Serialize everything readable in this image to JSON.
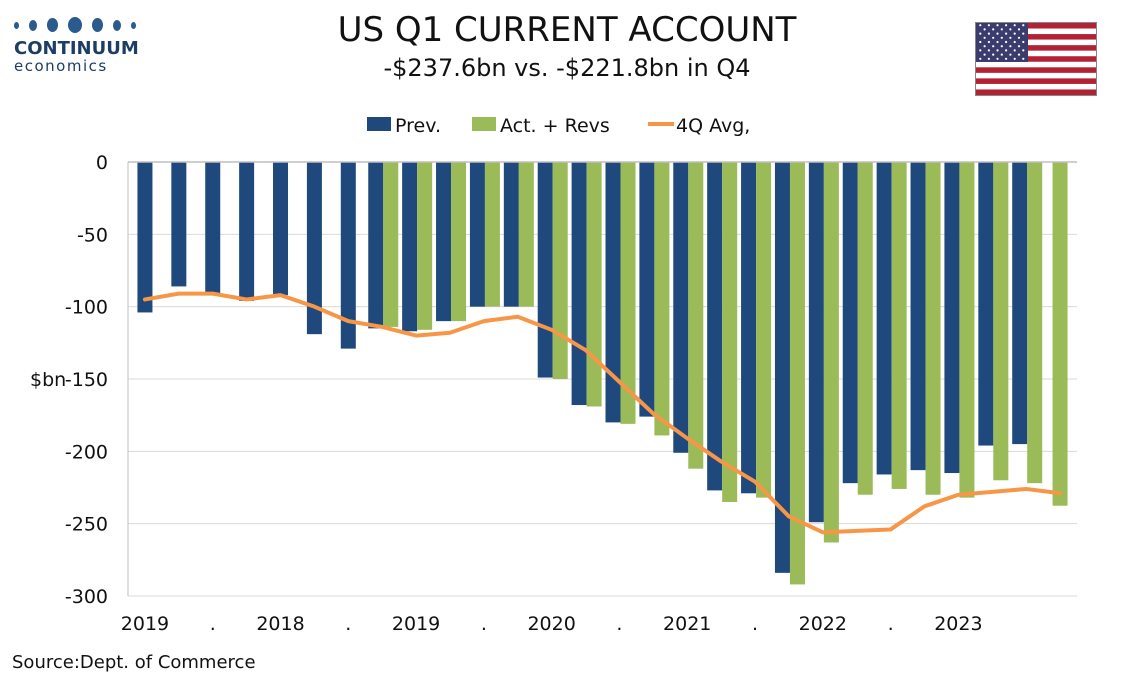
{
  "logo": {
    "line1": "CONTINUUM",
    "line2": "economics",
    "dot_color": "#2a5b8c",
    "text_color": "#1e3d66"
  },
  "flag": {
    "icon": "us-flag-icon"
  },
  "source": "Source:Dept. of Commerce",
  "chart_data": {
    "type": "bar",
    "title": "US Q1 CURRENT ACCOUNT",
    "subtitle": "-$237.6bn vs. -$221.8bn in Q4",
    "ylabel": "$bn",
    "ylim": [
      -300,
      0
    ],
    "yticks": [
      0,
      -50,
      -100,
      -150,
      -200,
      -250,
      -300
    ],
    "xtick_labels": [
      "2019",
      ".",
      "2018",
      ".",
      "2019",
      ".",
      "2020",
      ".",
      "2021",
      ".",
      "2022",
      ".",
      "2023"
    ],
    "grid": true,
    "legend": "top-center",
    "colors": {
      "prev": "#1f497d",
      "act": "#9bbb59",
      "avg": "#f79646"
    },
    "n_periods": 28,
    "series": [
      {
        "name": "Prev.",
        "type": "bar",
        "values": [
          -104,
          -86,
          -91,
          -96,
          -92,
          -119,
          -129,
          -115,
          -117,
          -110,
          -100,
          -100,
          -149,
          -168,
          -180,
          -176,
          -201,
          -227,
          -229,
          -284,
          -249,
          -222,
          -216,
          -213,
          -215,
          -196,
          -195,
          null
        ]
      },
      {
        "name": "Act. + Revs",
        "type": "bar",
        "values": [
          null,
          null,
          null,
          null,
          null,
          null,
          null,
          -114,
          -116,
          -110,
          -100,
          -100,
          -150,
          -169,
          -181,
          -189,
          -212,
          -235,
          -232,
          -292,
          -263,
          -230,
          -226,
          -230,
          -232,
          -220,
          -222,
          -237.6
        ]
      },
      {
        "name": "4Q Avg,",
        "type": "line",
        "values": [
          -95,
          -91,
          -91,
          -95,
          -92,
          -100,
          -110,
          -114,
          -120,
          -118,
          -110,
          -107,
          -116,
          -130,
          -152,
          -174,
          -191,
          -207,
          -221,
          -245,
          -256,
          -255,
          -254,
          -238,
          -230,
          -228,
          -226,
          -229
        ]
      }
    ]
  }
}
